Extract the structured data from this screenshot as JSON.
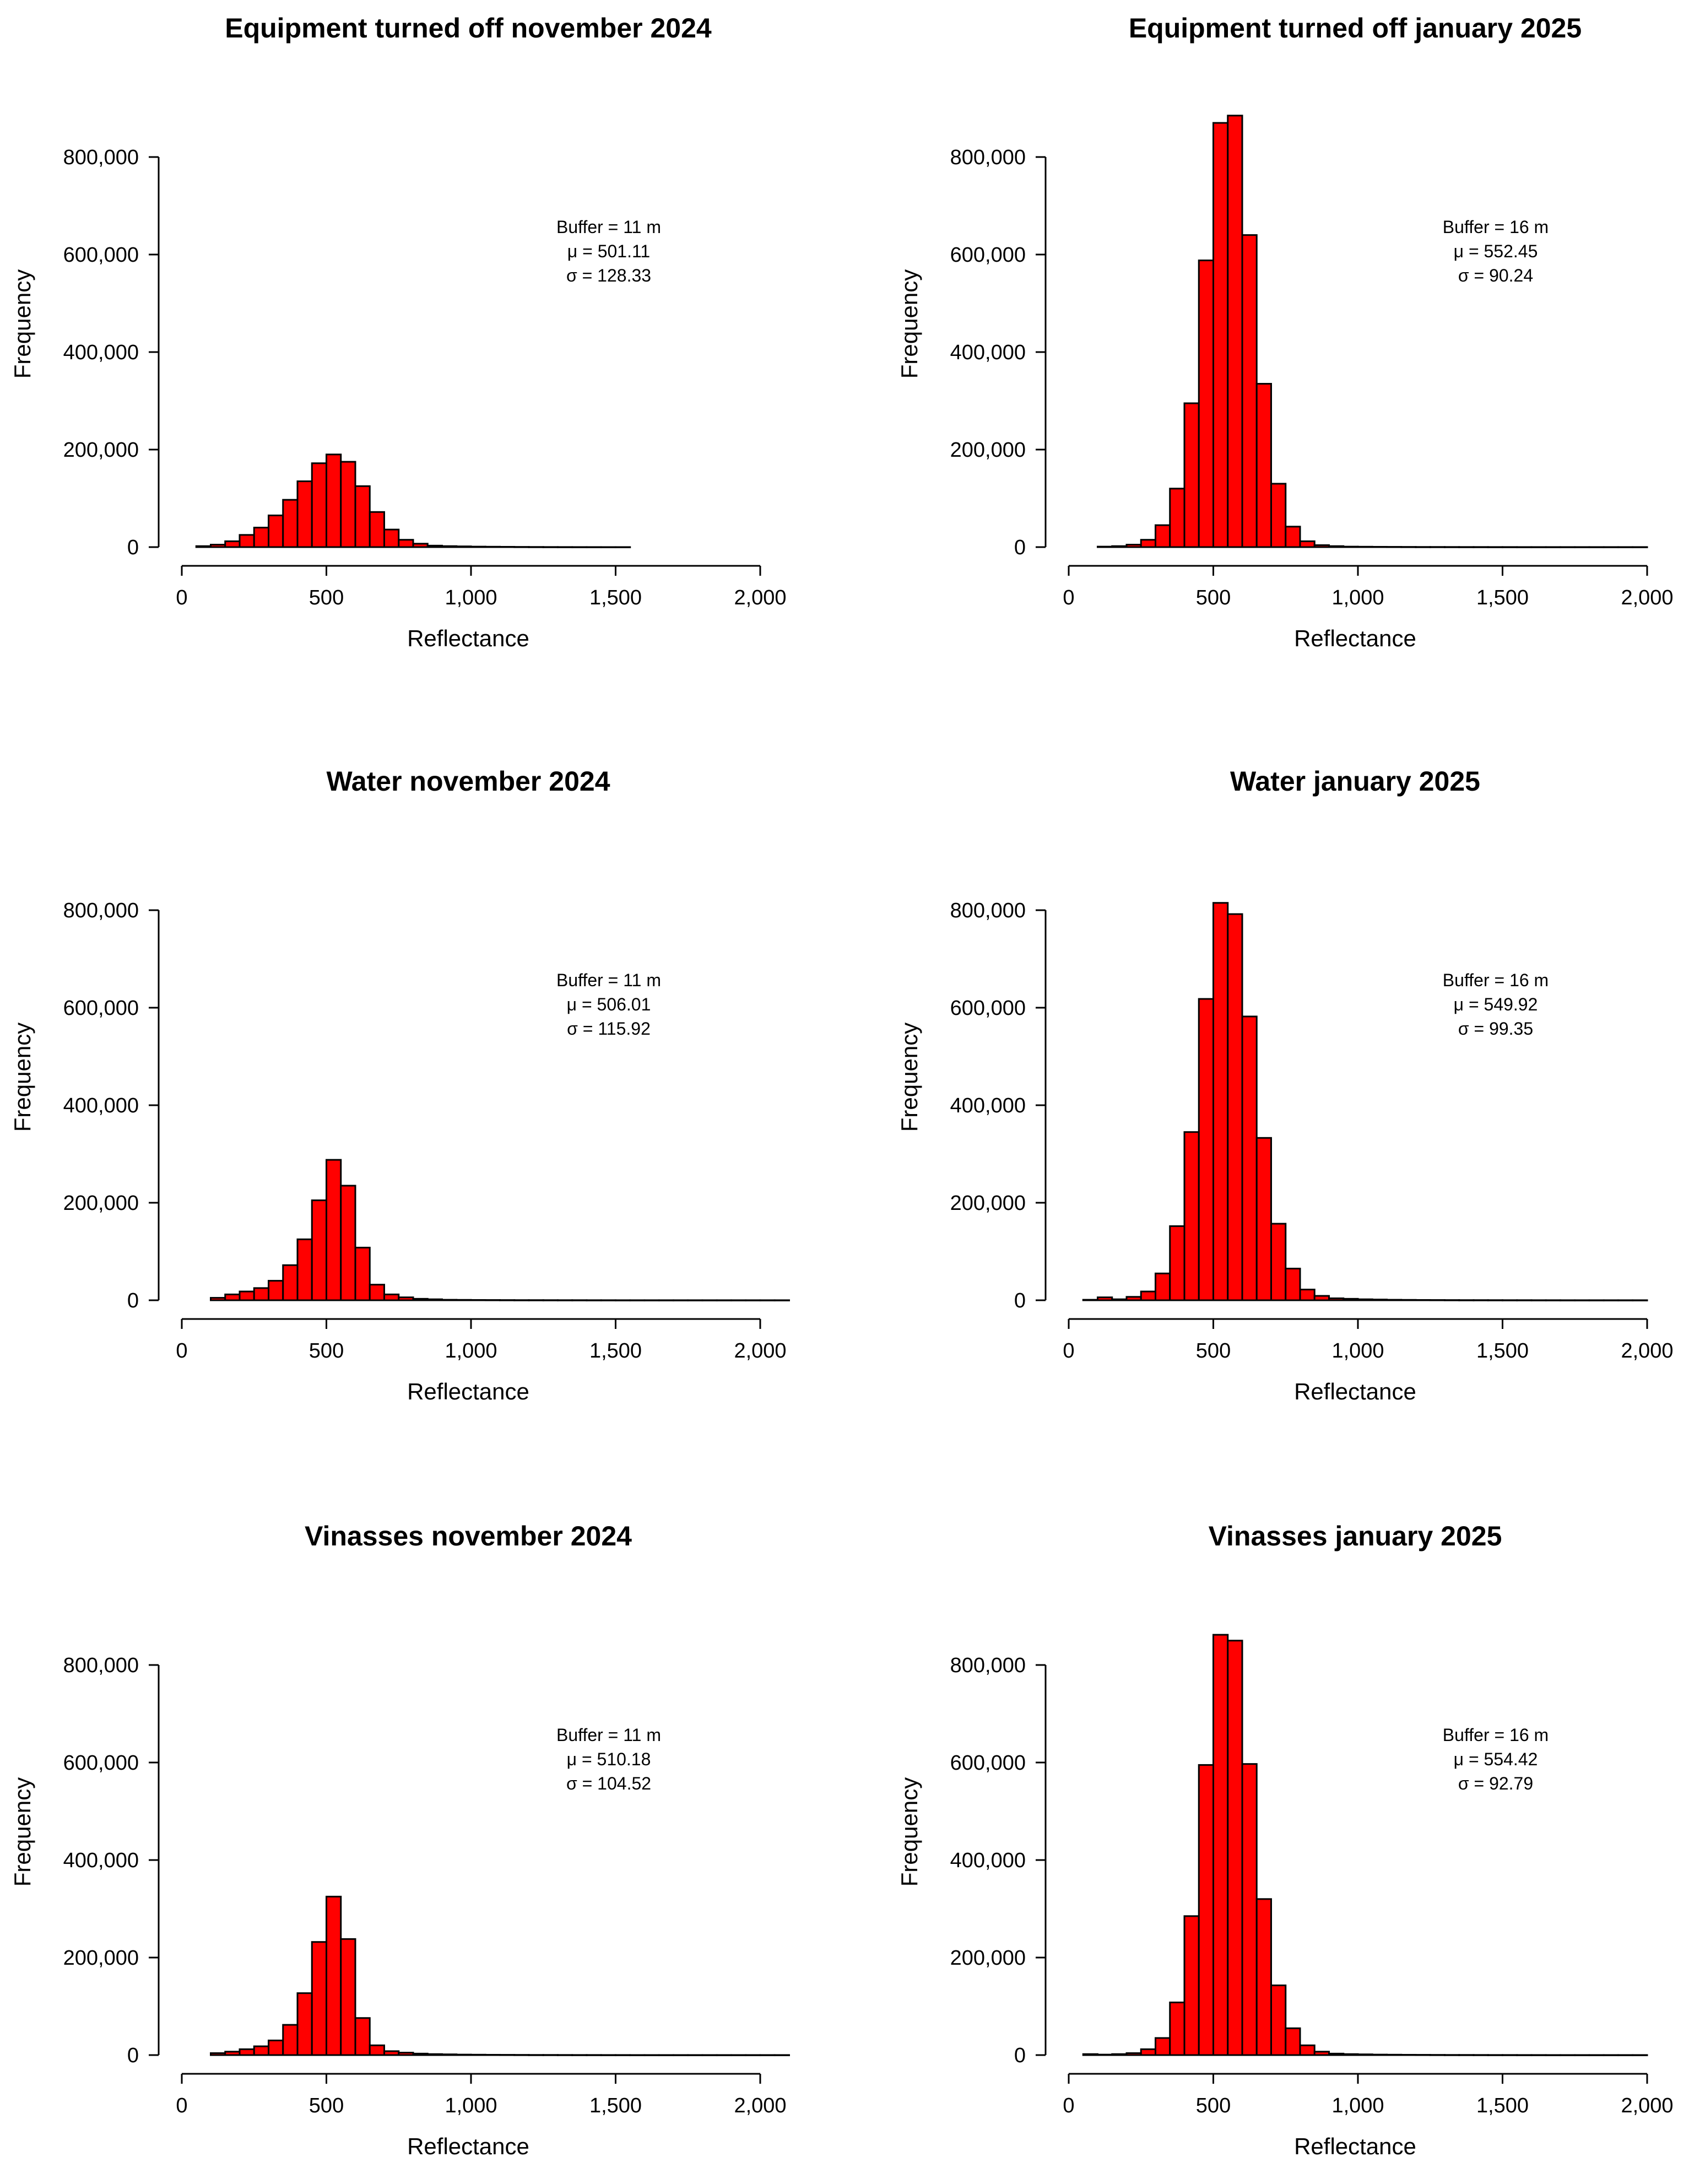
{
  "figure": {
    "bar_color": "#ff0000",
    "bar_edge_color": "#000000",
    "bin_width": 50
  },
  "chart_data": [
    {
      "type": "bar",
      "title": "Equipment turned off november 2024",
      "xlabel": "Reflectance",
      "ylabel": "Frequency",
      "xlim": [
        0,
        2000
      ],
      "ylim": [
        0,
        800000
      ],
      "x_ticks": [
        "0",
        "500",
        "1,000",
        "1,500",
        "2,000"
      ],
      "y_ticks": [
        "0",
        "200,000",
        "400,000",
        "600,000",
        "800,000"
      ],
      "annotation": [
        "Buffer = 11 m",
        "μ =  501.11",
        "σ =  128.33"
      ],
      "bin_start": 50,
      "values": [
        2000,
        5000,
        12000,
        25000,
        40000,
        65000,
        97000,
        135000,
        172000,
        190000,
        175000,
        125000,
        72000,
        36000,
        15000,
        7000,
        3000,
        2000,
        1500,
        1000,
        800,
        600,
        400,
        300,
        200,
        150,
        100,
        80,
        60,
        50
      ]
    },
    {
      "type": "bar",
      "title": "Equipment turned off january 2025",
      "xlabel": "Reflectance",
      "ylabel": "Frequency",
      "xlim": [
        0,
        2000
      ],
      "ylim": [
        0,
        800000
      ],
      "x_ticks": [
        "0",
        "500",
        "1,000",
        "1,500",
        "2,000"
      ],
      "y_ticks": [
        "0",
        "200,000",
        "400,000",
        "600,000",
        "800,000"
      ],
      "annotation": [
        "Buffer = 16 m",
        "μ =  552.45",
        "σ =  90.24"
      ],
      "bin_start": 100,
      "values": [
        1000,
        2000,
        5000,
        15000,
        45000,
        120000,
        295000,
        588000,
        870000,
        885000,
        640000,
        335000,
        130000,
        42000,
        12000,
        4000,
        2000,
        1000,
        800,
        600,
        500,
        400,
        300,
        300,
        250,
        200,
        200,
        150,
        150,
        100,
        100,
        100,
        100,
        100,
        100,
        100,
        100,
        100
      ]
    },
    {
      "type": "bar",
      "title": "Water november 2024",
      "xlabel": "Reflectance",
      "ylabel": "Frequency",
      "xlim": [
        0,
        2000
      ],
      "ylim": [
        0,
        800000
      ],
      "x_ticks": [
        "0",
        "500",
        "1,000",
        "1,500",
        "2,000"
      ],
      "y_ticks": [
        "0",
        "200,000",
        "400,000",
        "600,000",
        "800,000"
      ],
      "annotation": [
        "Buffer = 11 m",
        "μ =  506.01",
        "σ =  115.92"
      ],
      "bin_start": 100,
      "values": [
        5000,
        12000,
        18000,
        25000,
        40000,
        72000,
        125000,
        205000,
        288000,
        235000,
        108000,
        32000,
        12000,
        6000,
        3000,
        2000,
        1000,
        800,
        600,
        500,
        400,
        300,
        300,
        250,
        200,
        200,
        150,
        150,
        100,
        100,
        100,
        100,
        100,
        100,
        100,
        100,
        100,
        100,
        100,
        100
      ]
    },
    {
      "type": "bar",
      "title": "Water january 2025",
      "xlabel": "Reflectance",
      "ylabel": "Frequency",
      "xlim": [
        0,
        2000
      ],
      "ylim": [
        0,
        800000
      ],
      "x_ticks": [
        "0",
        "500",
        "1,000",
        "1,500",
        "2,000"
      ],
      "y_ticks": [
        "0",
        "200,000",
        "400,000",
        "600,000",
        "800,000"
      ],
      "annotation": [
        "Buffer = 16 m",
        "μ =  549.92",
        "σ =  99.35"
      ],
      "bin_start": 50,
      "values": [
        1000,
        6000,
        2000,
        7000,
        18000,
        55000,
        152000,
        345000,
        618000,
        815000,
        792000,
        582000,
        333000,
        157000,
        65000,
        22000,
        9000,
        4000,
        3000,
        2000,
        1500,
        1000,
        800,
        600,
        500,
        400,
        300,
        300,
        250,
        200,
        200,
        150,
        150,
        100,
        100,
        100,
        100,
        100,
        100
      ]
    },
    {
      "type": "bar",
      "title": "Vinasses november 2024",
      "xlabel": "Reflectance",
      "ylabel": "Frequency",
      "xlim": [
        0,
        2000
      ],
      "ylim": [
        0,
        800000
      ],
      "x_ticks": [
        "0",
        "500",
        "1,000",
        "1,500",
        "2,000"
      ],
      "y_ticks": [
        "0",
        "200,000",
        "400,000",
        "600,000",
        "800,000"
      ],
      "annotation": [
        "Buffer = 11 m",
        "μ =  510.18",
        "σ =  104.52"
      ],
      "bin_start": 100,
      "values": [
        4000,
        7000,
        12000,
        18000,
        30000,
        62000,
        127000,
        232000,
        325000,
        238000,
        76000,
        20000,
        8000,
        5000,
        3000,
        2000,
        1500,
        1000,
        800,
        600,
        500,
        400,
        300,
        300,
        250,
        200,
        200,
        150,
        150,
        100,
        100,
        100,
        100,
        100,
        100,
        100,
        100,
        100,
        100,
        100
      ]
    },
    {
      "type": "bar",
      "title": "Vinasses january 2025",
      "xlabel": "Reflectance",
      "ylabel": "Frequency",
      "xlim": [
        0,
        2000
      ],
      "ylim": [
        0,
        800000
      ],
      "x_ticks": [
        "0",
        "500",
        "1,000",
        "1,500",
        "2,000"
      ],
      "y_ticks": [
        "0",
        "200,000",
        "400,000",
        "600,000",
        "800,000"
      ],
      "annotation": [
        "Buffer = 16 m",
        "μ =  554.42",
        "σ =  92.79"
      ],
      "bin_start": 50,
      "values": [
        2000,
        1000,
        2000,
        4000,
        12000,
        35000,
        108000,
        285000,
        595000,
        862000,
        850000,
        597000,
        320000,
        143000,
        55000,
        20000,
        7000,
        3000,
        2000,
        1500,
        1000,
        800,
        600,
        500,
        400,
        300,
        300,
        250,
        200,
        200,
        150,
        150,
        100,
        100,
        100,
        100,
        100,
        100,
        100
      ]
    }
  ]
}
